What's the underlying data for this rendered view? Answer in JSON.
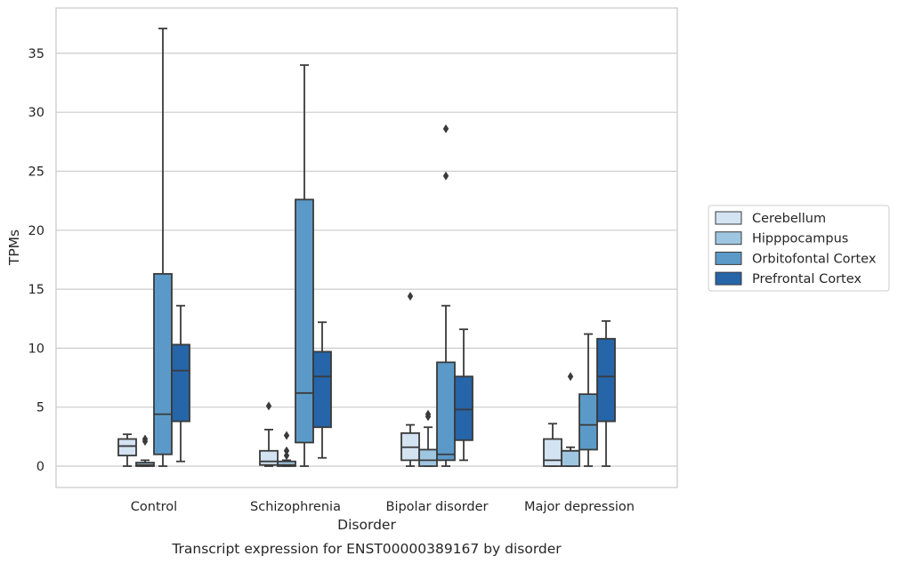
{
  "caption": "Transcript expression for ENST00000389167 by disorder",
  "chart_data": {
    "type": "box",
    "xlabel": "Disorder",
    "ylabel": "TPMs",
    "ylim": [
      -1.8,
      38.5
    ],
    "yticks": [
      0,
      5,
      10,
      15,
      20,
      25,
      30,
      35
    ],
    "grid": "horizontal",
    "legend_position": "right",
    "categories": [
      "Control",
      "Schizophrenia",
      "Bipolar disorder",
      "Major depression"
    ],
    "series": [
      {
        "name": "Cerebellum",
        "color": "#d3e3f2",
        "boxes": [
          {
            "category": "Control",
            "whisker_low": 0.0,
            "q1": 0.9,
            "median": 1.7,
            "q3": 2.3,
            "whisker_high": 2.7,
            "outliers": []
          },
          {
            "category": "Schizophrenia",
            "whisker_low": 0.0,
            "q1": 0.1,
            "median": 0.4,
            "q3": 1.3,
            "whisker_high": 3.1,
            "outliers": [
              5.1
            ]
          },
          {
            "category": "Bipolar disorder",
            "whisker_low": 0.0,
            "q1": 0.5,
            "median": 1.6,
            "q3": 2.8,
            "whisker_high": 3.5,
            "outliers": [
              14.4
            ]
          },
          {
            "category": "Major depression",
            "whisker_low": 0.0,
            "q1": 0.0,
            "median": 0.5,
            "q3": 2.3,
            "whisker_high": 3.6,
            "outliers": []
          }
        ]
      },
      {
        "name": "Hipppocampus",
        "color": "#9ec6e0",
        "boxes": [
          {
            "category": "Control",
            "whisker_low": 0.0,
            "q1": 0.0,
            "median": 0.1,
            "q3": 0.3,
            "whisker_high": 0.5,
            "outliers": [
              2.1,
              2.3
            ]
          },
          {
            "category": "Schizophrenia",
            "whisker_low": 0.0,
            "q1": 0.0,
            "median": 0.1,
            "q3": 0.4,
            "whisker_high": 0.5,
            "outliers": [
              0.9,
              1.3,
              2.6
            ]
          },
          {
            "category": "Bipolar disorder",
            "whisker_low": 0.0,
            "q1": 0.0,
            "median": 0.5,
            "q3": 1.4,
            "whisker_high": 3.3,
            "outliers": [
              4.2,
              4.4
            ]
          },
          {
            "category": "Major depression",
            "whisker_low": 0.0,
            "q1": 0.0,
            "median": 1.3,
            "q3": 1.3,
            "whisker_high": 1.6,
            "outliers": [
              7.6
            ]
          }
        ]
      },
      {
        "name": "Orbitofontal Cortex",
        "color": "#5b9ac8",
        "boxes": [
          {
            "category": "Control",
            "whisker_low": 0.0,
            "q1": 1.0,
            "median": 4.4,
            "q3": 16.3,
            "whisker_high": 37.1,
            "outliers": []
          },
          {
            "category": "Schizophrenia",
            "whisker_low": 0.0,
            "q1": 2.0,
            "median": 6.2,
            "q3": 22.6,
            "whisker_high": 34.0,
            "outliers": []
          },
          {
            "category": "Bipolar disorder",
            "whisker_low": 0.0,
            "q1": 0.5,
            "median": 1.0,
            "q3": 8.8,
            "whisker_high": 13.6,
            "outliers": [
              24.6,
              28.6
            ]
          },
          {
            "category": "Major depression",
            "whisker_low": 0.0,
            "q1": 1.4,
            "median": 3.5,
            "q3": 6.1,
            "whisker_high": 11.2,
            "outliers": []
          }
        ]
      },
      {
        "name": "Prefrontal Cortex",
        "color": "#2565a8",
        "boxes": [
          {
            "category": "Control",
            "whisker_low": 0.4,
            "q1": 3.8,
            "median": 8.1,
            "q3": 10.3,
            "whisker_high": 13.6,
            "outliers": []
          },
          {
            "category": "Schizophrenia",
            "whisker_low": 0.7,
            "q1": 3.3,
            "median": 7.6,
            "q3": 9.7,
            "whisker_high": 12.2,
            "outliers": []
          },
          {
            "category": "Bipolar disorder",
            "whisker_low": 0.5,
            "q1": 2.2,
            "median": 4.8,
            "q3": 7.6,
            "whisker_high": 11.6,
            "outliers": []
          },
          {
            "category": "Major depression",
            "whisker_low": 0.0,
            "q1": 3.8,
            "median": 7.6,
            "q3": 10.8,
            "whisker_high": 12.3,
            "outliers": []
          }
        ]
      }
    ]
  }
}
